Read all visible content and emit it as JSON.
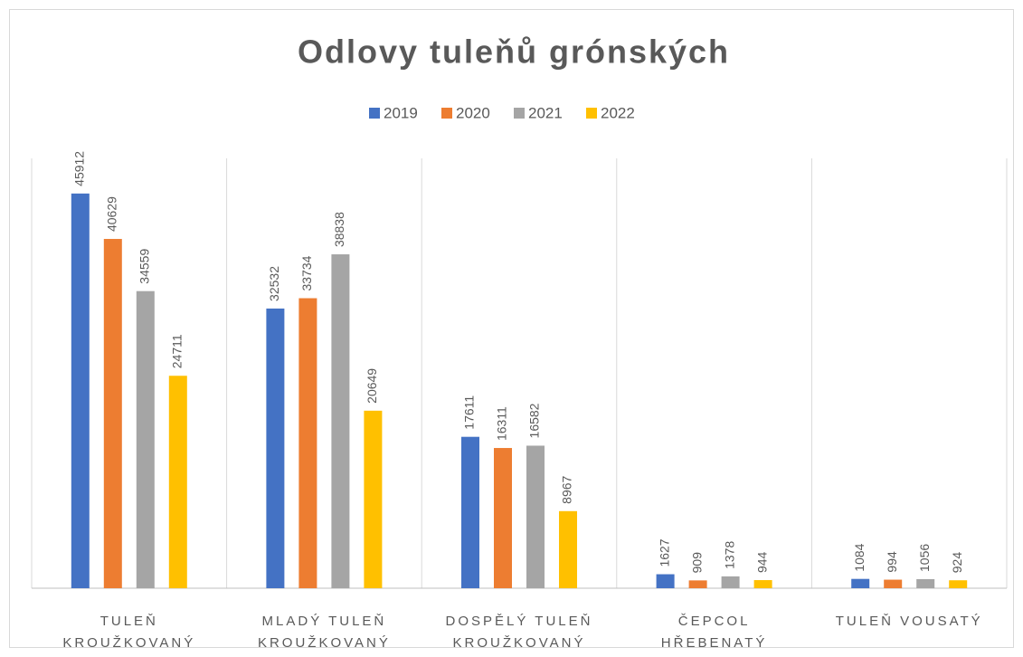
{
  "chart_data": {
    "type": "bar",
    "title": "Odlovy tuleňů grónských",
    "categories": [
      [
        "TULEŇ",
        "KROUŽKOVANÝ"
      ],
      [
        "MLADÝ TULEŇ",
        "KROUŽKOVANÝ"
      ],
      [
        "DOSPĚLÝ TULEŇ",
        "KROUŽKOVANÝ"
      ],
      [
        "ČEPCOL",
        "HŘEBENATÝ"
      ],
      [
        "TULEŇ VOUSATÝ"
      ]
    ],
    "series": [
      {
        "name": "2019",
        "color": "#4472c4",
        "values": [
          45912,
          32532,
          17611,
          1627,
          1084
        ]
      },
      {
        "name": "2020",
        "color": "#ed7d31",
        "values": [
          40629,
          33734,
          16311,
          909,
          994
        ]
      },
      {
        "name": "2021",
        "color": "#a5a5a5",
        "values": [
          34559,
          38838,
          16582,
          1378,
          1056
        ]
      },
      {
        "name": "2022",
        "color": "#ffc000",
        "values": [
          24711,
          20649,
          8967,
          944,
          924
        ]
      }
    ],
    "ylim": [
      0,
      50000
    ],
    "legend": "top"
  }
}
